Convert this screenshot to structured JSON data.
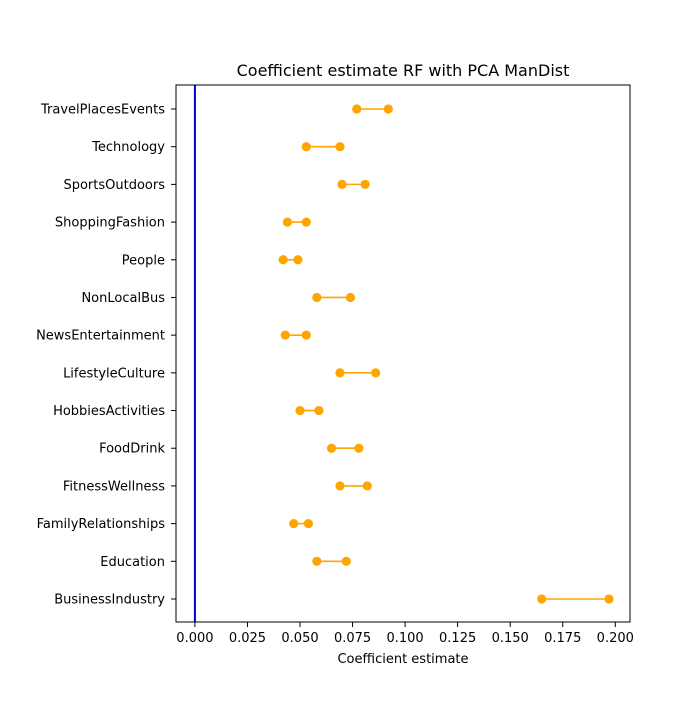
{
  "chart_data": {
    "type": "scatter",
    "title": "Coefficient estimate RF  with PCA ManDist",
    "xlabel": "Coefficient estimate",
    "ylabel": "",
    "xlim": [
      -0.009,
      0.207
    ],
    "xticks": [
      0.0,
      0.025,
      0.05,
      0.075,
      0.1,
      0.125,
      0.15,
      0.175,
      0.2
    ],
    "xtick_labels": [
      "0.000",
      "0.025",
      "0.050",
      "0.075",
      "0.100",
      "0.125",
      "0.150",
      "0.175",
      "0.200"
    ],
    "reference_line": {
      "x": 0.0,
      "color": "#0000cc"
    },
    "marker_color": "#ffa500",
    "grid": false,
    "categories": [
      "TravelPlacesEvents",
      "Technology",
      "SportsOutdoors",
      "ShoppingFashion",
      "People",
      "NonLocalBus",
      "NewsEntertainment",
      "LifestyleCulture",
      "HobbiesActivities",
      "FoodDrink",
      "FitnessWellness",
      "FamilyRelationships",
      "Education",
      "BusinessIndustry"
    ],
    "intervals": [
      [
        0.077,
        0.092
      ],
      [
        0.053,
        0.069
      ],
      [
        0.07,
        0.081
      ],
      [
        0.044,
        0.053
      ],
      [
        0.042,
        0.049
      ],
      [
        0.058,
        0.074
      ],
      [
        0.043,
        0.053
      ],
      [
        0.069,
        0.086
      ],
      [
        0.05,
        0.059
      ],
      [
        0.065,
        0.078
      ],
      [
        0.069,
        0.082
      ],
      [
        0.047,
        0.054
      ],
      [
        0.058,
        0.072
      ],
      [
        0.165,
        0.197
      ]
    ]
  }
}
